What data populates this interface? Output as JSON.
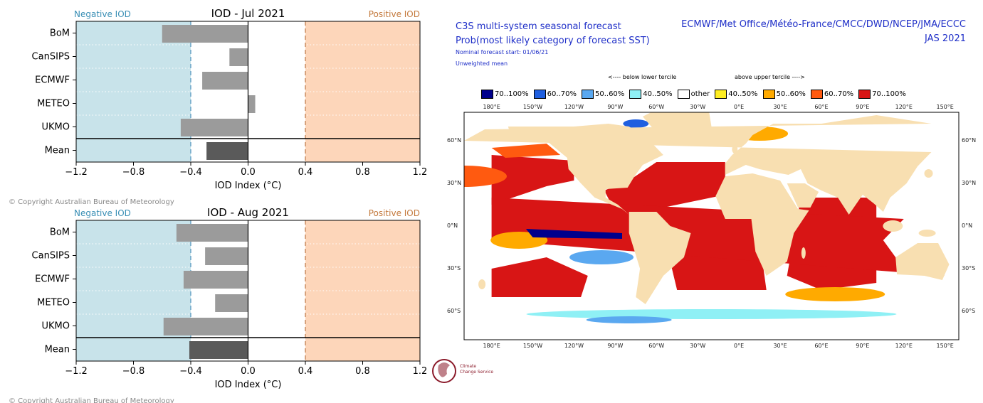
{
  "iod_charts": [
    {
      "title": "IOD - Jul 2021",
      "negative_label": "Negative IOD",
      "positive_label": "Positive IOD",
      "xlabel": "IOD Index (°C)",
      "copyright": "© Copyright Australian Bureau of Meteorology",
      "xticks": [
        "−1.2",
        "−0.8",
        "−0.4",
        "0.0",
        "0.4",
        "0.8",
        "1.2"
      ]
    },
    {
      "title": "IOD - Aug 2021",
      "negative_label": "Negative IOD",
      "positive_label": "Positive IOD",
      "xlabel": "IOD Index (°C)",
      "copyright": "© Copyright Australian Bureau of Meteorology",
      "xticks": [
        "−1.2",
        "−0.8",
        "−0.4",
        "0.0",
        "0.4",
        "0.8",
        "1.2"
      ]
    }
  ],
  "chart_data": [
    {
      "type": "bar",
      "orientation": "horizontal",
      "title": "IOD - Jul 2021",
      "xlabel": "IOD Index (°C)",
      "xlim": [
        -1.2,
        1.2
      ],
      "thresholds": [
        -0.4,
        0.4
      ],
      "categories": [
        "BoM",
        "CanSIPS",
        "ECMWF",
        "METEO",
        "UKMO",
        "Mean"
      ],
      "values": [
        -0.6,
        -0.13,
        -0.32,
        0.05,
        -0.47,
        -0.29
      ]
    },
    {
      "type": "bar",
      "orientation": "horizontal",
      "title": "IOD - Aug 2021",
      "xlabel": "IOD Index (°C)",
      "xlim": [
        -1.2,
        1.2
      ],
      "thresholds": [
        -0.4,
        0.4
      ],
      "categories": [
        "BoM",
        "CanSIPS",
        "ECMWF",
        "METEO",
        "UKMO",
        "Mean"
      ],
      "values": [
        -0.5,
        -0.3,
        -0.45,
        -0.23,
        -0.59,
        -0.41
      ]
    }
  ],
  "colors": {
    "negative_bg": "#c8e3ea",
    "positive_bg": "#fdd6ba",
    "model_bar": "#9b9b9b",
    "mean_bar": "#5a5a5a",
    "negative_text": "#3a8fb5",
    "positive_text": "#c47a3e",
    "c3s_text": "#1f2fc8",
    "land": "#f8dfb1"
  },
  "map": {
    "title_line1": "C3S multi-system seasonal forecast",
    "title_line2": "Prob(most likely category of forecast SST)",
    "subtitle_line1": "Nominal forecast start: 01/06/21",
    "subtitle_line2": "Unweighted mean",
    "centres": "ECMWF/Met Office/Météo-France/CMCC/DWD/NCEP/JMA/ECCC",
    "season": "JAS 2021",
    "below_note": "<---- below lower tercile",
    "above_note": "above upper tercile ---->",
    "legend": [
      {
        "label": "70..100%",
        "color": "#00008c"
      },
      {
        "label": "60..70%",
        "color": "#1f5fe0"
      },
      {
        "label": "50..60%",
        "color": "#5aa8f0"
      },
      {
        "label": "40..50%",
        "color": "#8ff0f5"
      },
      {
        "label": "other",
        "color": "#ffffff"
      },
      {
        "label": "40..50%",
        "color": "#ffee22"
      },
      {
        "label": "50..60%",
        "color": "#ffaa00"
      },
      {
        "label": "60..70%",
        "color": "#ff5a10"
      },
      {
        "label": "70..100%",
        "color": "#d81515"
      }
    ],
    "lon_labels": [
      "180°E",
      "150°W",
      "120°W",
      "90°W",
      "60°W",
      "30°W",
      "0°E",
      "30°E",
      "60°E",
      "90°E",
      "120°E",
      "150°E"
    ],
    "lat_labels": [
      "60°N",
      "30°N",
      "0°N",
      "30°S",
      "60°S"
    ]
  },
  "logo": {
    "name": "Climate Change Service",
    "line1": "Climate",
    "line2": "Change Service",
    "line3": "",
    "tagline": "\t\t"
  }
}
